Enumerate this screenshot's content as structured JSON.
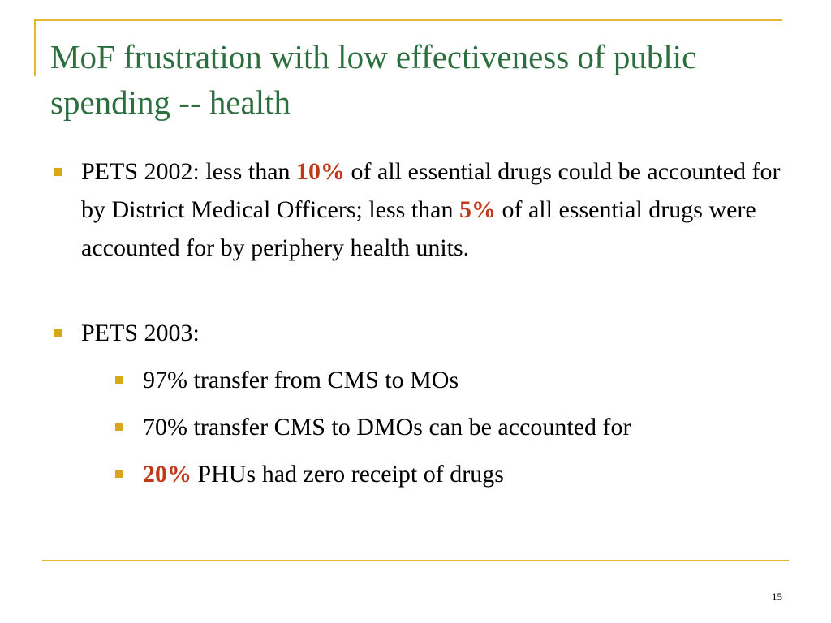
{
  "slide": {
    "title": "MoF frustration with low effectiveness of public spending -- health",
    "bullets": [
      {
        "parts": [
          "PETS 2002: less than ",
          "10%",
          " of all essential drugs could be accounted for by District Medical Officers; less than ",
          "5%",
          " of all essential drugs were accounted for by periphery health units."
        ]
      },
      {
        "label": "PETS 2003:",
        "sub": [
          "97% transfer from CMS to MOs",
          "70% transfer CMS to DMOs can be accounted for",
          {
            "highlight": "20%",
            "rest": " PHUs had zero receipt of drugs"
          }
        ]
      }
    ],
    "page_number": "15",
    "colors": {
      "title": "#2c6e3e",
      "accent_rule": "#e3b637",
      "bullet": "#d9a81a",
      "highlight": "#c0391a"
    }
  }
}
